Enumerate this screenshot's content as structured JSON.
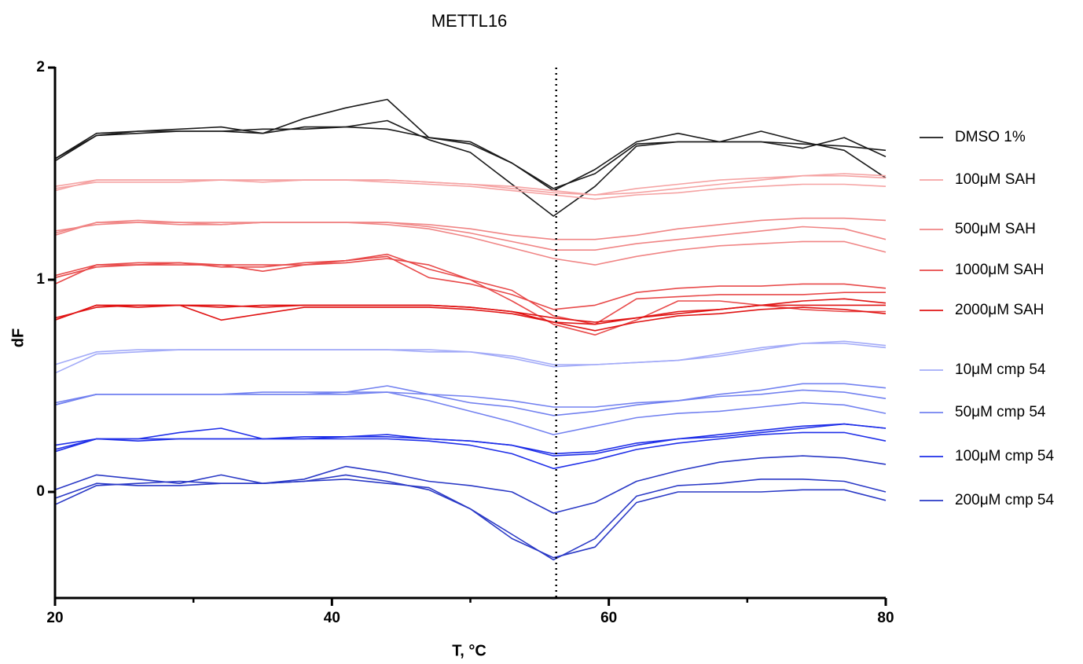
{
  "chart_data": {
    "type": "line",
    "title": "METTL16",
    "x_label": "T, °C",
    "y_label": "dF",
    "xlim": [
      20,
      80
    ],
    "xticks": [
      20,
      40,
      60,
      80
    ],
    "xminorticks": [
      30,
      50,
      70
    ],
    "ylim": [
      -0.5,
      2
    ],
    "yticks": [
      0,
      1,
      2
    ],
    "vline": 56.2,
    "x": [
      20,
      23,
      26,
      29,
      32,
      35,
      38,
      41,
      44,
      47,
      50,
      53,
      56,
      59,
      62,
      65,
      68,
      71,
      74,
      77,
      80
    ],
    "series": [
      {
        "name": "DMSO 1%",
        "color": "#1a1a1a",
        "lines": [
          [
            1.57,
            1.69,
            1.7,
            1.7,
            1.7,
            1.69,
            1.72,
            1.72,
            1.71,
            1.67,
            1.64,
            1.55,
            1.43,
            1.5,
            1.64,
            1.65,
            1.65,
            1.65,
            1.64,
            1.63,
            1.61
          ],
          [
            1.56,
            1.68,
            1.7,
            1.71,
            1.72,
            1.69,
            1.76,
            1.81,
            1.85,
            1.67,
            1.65,
            1.55,
            1.42,
            1.52,
            1.65,
            1.69,
            1.65,
            1.65,
            1.62,
            1.67,
            1.58
          ],
          [
            1.57,
            1.68,
            1.69,
            1.7,
            1.7,
            1.71,
            1.71,
            1.72,
            1.75,
            1.66,
            1.6,
            1.45,
            1.3,
            1.44,
            1.63,
            1.65,
            1.65,
            1.7,
            1.65,
            1.61,
            1.48
          ]
        ]
      },
      {
        "name": "100μM SAH",
        "color": "#f5a3a3",
        "lines": [
          [
            1.42,
            1.47,
            1.47,
            1.47,
            1.47,
            1.47,
            1.47,
            1.47,
            1.47,
            1.46,
            1.45,
            1.43,
            1.41,
            1.4,
            1.43,
            1.45,
            1.47,
            1.48,
            1.49,
            1.5,
            1.49
          ],
          [
            1.43,
            1.46,
            1.46,
            1.46,
            1.47,
            1.47,
            1.47,
            1.47,
            1.47,
            1.46,
            1.45,
            1.44,
            1.42,
            1.4,
            1.41,
            1.43,
            1.45,
            1.47,
            1.49,
            1.49,
            1.48
          ],
          [
            1.44,
            1.47,
            1.47,
            1.47,
            1.47,
            1.46,
            1.47,
            1.47,
            1.46,
            1.45,
            1.44,
            1.42,
            1.4,
            1.38,
            1.4,
            1.41,
            1.43,
            1.44,
            1.45,
            1.45,
            1.44
          ]
        ]
      },
      {
        "name": "500μM SAH",
        "color": "#f08585",
        "lines": [
          [
            1.22,
            1.27,
            1.28,
            1.27,
            1.27,
            1.27,
            1.27,
            1.27,
            1.27,
            1.26,
            1.24,
            1.21,
            1.19,
            1.19,
            1.21,
            1.24,
            1.26,
            1.28,
            1.29,
            1.29,
            1.28
          ],
          [
            1.21,
            1.27,
            1.27,
            1.27,
            1.26,
            1.27,
            1.27,
            1.27,
            1.27,
            1.25,
            1.22,
            1.18,
            1.14,
            1.14,
            1.17,
            1.19,
            1.21,
            1.23,
            1.25,
            1.24,
            1.19
          ],
          [
            1.23,
            1.26,
            1.27,
            1.26,
            1.26,
            1.27,
            1.27,
            1.27,
            1.26,
            1.24,
            1.2,
            1.15,
            1.1,
            1.07,
            1.11,
            1.14,
            1.16,
            1.17,
            1.18,
            1.18,
            1.13
          ]
        ]
      },
      {
        "name": "1000μM SAH",
        "color": "#e84a4a",
        "lines": [
          [
            0.98,
            1.07,
            1.07,
            1.08,
            1.06,
            1.06,
            1.08,
            1.09,
            1.11,
            1.01,
            0.98,
            0.93,
            0.86,
            0.88,
            0.94,
            0.96,
            0.97,
            0.97,
            0.98,
            0.98,
            0.96
          ],
          [
            1.02,
            1.07,
            1.08,
            1.08,
            1.07,
            1.04,
            1.07,
            1.09,
            1.12,
            1.05,
            1.0,
            0.95,
            0.83,
            0.79,
            0.91,
            0.92,
            0.93,
            0.93,
            0.93,
            0.94,
            0.94
          ],
          [
            1.01,
            1.06,
            1.07,
            1.07,
            1.07,
            1.07,
            1.07,
            1.08,
            1.1,
            1.07,
            1.0,
            0.9,
            0.79,
            0.74,
            0.81,
            0.9,
            0.9,
            0.88,
            0.86,
            0.85,
            0.85
          ]
        ]
      },
      {
        "name": "2000μM SAH",
        "color": "#e01414",
        "lines": [
          [
            0.81,
            0.88,
            0.88,
            0.88,
            0.87,
            0.88,
            0.88,
            0.88,
            0.88,
            0.88,
            0.87,
            0.85,
            0.82,
            0.8,
            0.82,
            0.84,
            0.86,
            0.88,
            0.9,
            0.91,
            0.89
          ],
          [
            0.81,
            0.88,
            0.87,
            0.88,
            0.81,
            0.84,
            0.87,
            0.87,
            0.87,
            0.87,
            0.86,
            0.84,
            0.8,
            0.79,
            0.82,
            0.85,
            0.86,
            0.88,
            0.88,
            0.88,
            0.88
          ],
          [
            0.82,
            0.87,
            0.88,
            0.88,
            0.88,
            0.87,
            0.88,
            0.88,
            0.88,
            0.88,
            0.87,
            0.85,
            0.8,
            0.76,
            0.8,
            0.83,
            0.84,
            0.86,
            0.87,
            0.86,
            0.84
          ]
        ]
      },
      {
        "name": "10μM cmp 54",
        "color": "#a3abf8",
        "lines": [
          [
            0.6,
            0.66,
            0.67,
            0.67,
            0.67,
            0.67,
            0.67,
            0.67,
            0.67,
            0.67,
            0.66,
            0.64,
            0.6,
            0.6,
            0.61,
            0.62,
            0.64,
            0.67,
            0.7,
            0.71,
            0.69
          ],
          [
            0.56,
            0.65,
            0.66,
            0.67,
            0.67,
            0.67,
            0.67,
            0.67,
            0.67,
            0.66,
            0.66,
            0.63,
            0.59,
            0.6,
            0.61,
            0.62,
            0.65,
            0.68,
            0.7,
            0.7,
            0.68
          ]
        ]
      },
      {
        "name": "50μM cmp 54",
        "color": "#7382f0",
        "lines": [
          [
            0.42,
            0.46,
            0.46,
            0.46,
            0.46,
            0.47,
            0.47,
            0.47,
            0.47,
            0.46,
            0.45,
            0.43,
            0.4,
            0.4,
            0.42,
            0.43,
            0.46,
            0.48,
            0.51,
            0.51,
            0.49
          ],
          [
            0.41,
            0.46,
            0.46,
            0.46,
            0.46,
            0.46,
            0.46,
            0.47,
            0.5,
            0.46,
            0.42,
            0.4,
            0.36,
            0.38,
            0.41,
            0.43,
            0.45,
            0.46,
            0.48,
            0.47,
            0.44
          ],
          [
            0.41,
            0.46,
            0.46,
            0.46,
            0.46,
            0.46,
            0.46,
            0.46,
            0.47,
            0.43,
            0.38,
            0.33,
            0.27,
            0.31,
            0.35,
            0.37,
            0.38,
            0.4,
            0.42,
            0.41,
            0.37
          ]
        ]
      },
      {
        "name": "100μM cmp 54",
        "color": "#1f2fe8",
        "lines": [
          [
            0.22,
            0.25,
            0.25,
            0.25,
            0.25,
            0.25,
            0.25,
            0.26,
            0.26,
            0.25,
            0.24,
            0.22,
            0.18,
            0.19,
            0.23,
            0.25,
            0.27,
            0.29,
            0.31,
            0.32,
            0.3
          ],
          [
            0.2,
            0.25,
            0.24,
            0.25,
            0.25,
            0.25,
            0.26,
            0.26,
            0.27,
            0.25,
            0.24,
            0.22,
            0.17,
            0.18,
            0.22,
            0.25,
            0.26,
            0.28,
            0.3,
            0.32,
            0.3
          ],
          [
            0.19,
            0.25,
            0.25,
            0.28,
            0.3,
            0.25,
            0.25,
            0.25,
            0.25,
            0.24,
            0.22,
            0.18,
            0.11,
            0.15,
            0.2,
            0.23,
            0.25,
            0.27,
            0.28,
            0.28,
            0.24
          ]
        ]
      },
      {
        "name": "200μM cmp 54",
        "color": "#2a39c6",
        "lines": [
          [
            0.01,
            0.08,
            0.06,
            0.04,
            0.08,
            0.04,
            0.06,
            0.12,
            0.09,
            0.05,
            0.03,
            0.0,
            -0.1,
            -0.05,
            0.05,
            0.1,
            0.14,
            0.16,
            0.17,
            0.16,
            0.13
          ],
          [
            -0.06,
            0.03,
            0.04,
            0.05,
            0.04,
            0.04,
            0.05,
            0.08,
            0.05,
            0.01,
            -0.08,
            -0.2,
            -0.32,
            -0.22,
            -0.02,
            0.03,
            0.04,
            0.06,
            0.06,
            0.05,
            0.0
          ],
          [
            -0.03,
            0.04,
            0.03,
            0.03,
            0.04,
            0.04,
            0.05,
            0.06,
            0.04,
            0.02,
            -0.08,
            -0.22,
            -0.31,
            -0.26,
            -0.05,
            0.0,
            0.0,
            0.0,
            0.01,
            0.01,
            -0.04
          ]
        ]
      }
    ]
  }
}
